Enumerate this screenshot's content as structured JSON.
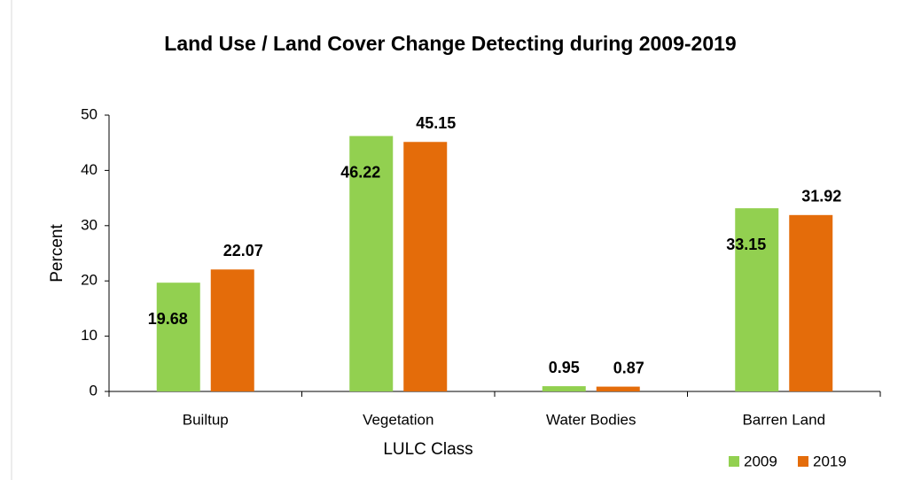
{
  "chart_data": {
    "type": "bar",
    "title": "Land Use / Land Cover Change Detecting during 2009-2019",
    "x_label": "LULC Class",
    "y_label": "Percent",
    "categories": [
      "Builtup",
      "Vegetation",
      "Water Bodies",
      "Barren Land"
    ],
    "series": [
      {
        "name": "2009",
        "color": "#92d050",
        "values": [
          19.68,
          46.22,
          0.95,
          33.15
        ]
      },
      {
        "name": "2019",
        "color": "#e46c0a",
        "values": [
          22.07,
          45.15,
          0.87,
          31.92
        ]
      }
    ],
    "ylim": [
      0,
      50
    ],
    "yticks": [
      0,
      10,
      20,
      30,
      40,
      50
    ],
    "legend": "bottom-right"
  }
}
